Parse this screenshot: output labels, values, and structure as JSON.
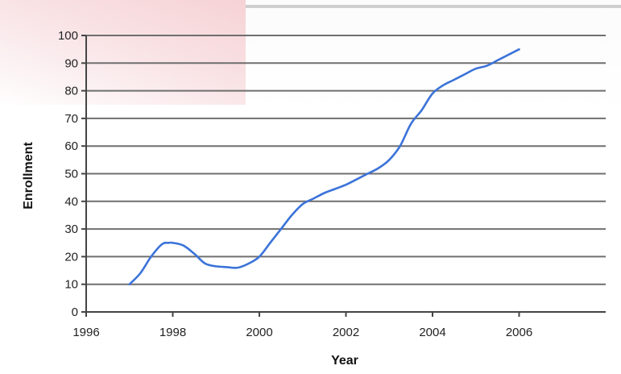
{
  "chart_data": {
    "type": "line",
    "title": "",
    "xlabel": "Year",
    "ylabel": "Enrollment",
    "xlim": [
      1996,
      2008
    ],
    "ylim": [
      0,
      100
    ],
    "x_ticks": [
      1996,
      1998,
      2000,
      2002,
      2004,
      2006
    ],
    "y_ticks": [
      0,
      10,
      20,
      30,
      40,
      50,
      60,
      70,
      80,
      90,
      100
    ],
    "grid": true,
    "legend": "none",
    "series_color": "#3b73d9",
    "series": [
      {
        "x": [
          1997.0,
          1997.25,
          1997.5,
          1997.75,
          1997.9,
          1998.0,
          1998.25,
          1998.5,
          1998.75,
          1999.0,
          1999.25,
          1999.5,
          1999.75,
          2000.0,
          2000.25,
          2000.5,
          2000.75,
          2001.0,
          2001.25,
          2001.5,
          2001.75,
          2002.0,
          2002.25,
          2002.5,
          2002.75,
          2003.0,
          2003.25,
          2003.5,
          2003.75,
          2004.0,
          2004.25,
          2004.5,
          2004.75,
          2005.0,
          2005.25,
          2005.5,
          2005.75,
          2006.0
        ],
        "values": [
          10,
          14,
          20,
          24.5,
          25,
          25,
          24,
          21,
          17.5,
          16.5,
          16.2,
          16,
          17.5,
          20,
          25,
          30,
          35,
          39,
          41,
          43,
          44.5,
          46,
          48,
          50,
          52,
          55,
          60,
          68,
          73,
          79,
          82,
          84,
          86,
          88,
          89,
          91,
          93,
          95
        ]
      }
    ]
  }
}
